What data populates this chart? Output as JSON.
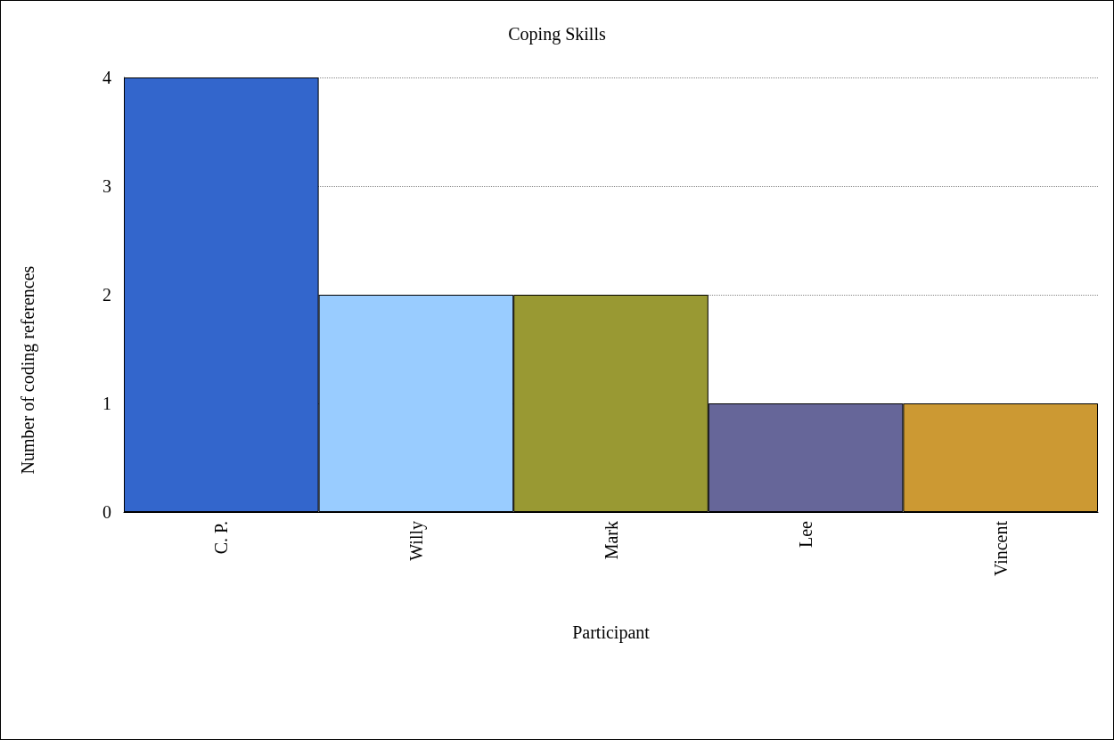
{
  "chart_data": {
    "type": "bar",
    "title": "Coping Skills",
    "xlabel": "Participant",
    "ylabel": "Number of coding references",
    "categories": [
      "C. P.",
      "Willy",
      "Mark",
      "Lee",
      "Vincent"
    ],
    "values": [
      4,
      2,
      2,
      1,
      1
    ],
    "colors": [
      "#3366cc",
      "#99ccff",
      "#999933",
      "#666699",
      "#cc9933"
    ],
    "ylim": [
      0,
      4
    ],
    "yticks": [
      0,
      1,
      2,
      3,
      4
    ],
    "grid": "y"
  }
}
